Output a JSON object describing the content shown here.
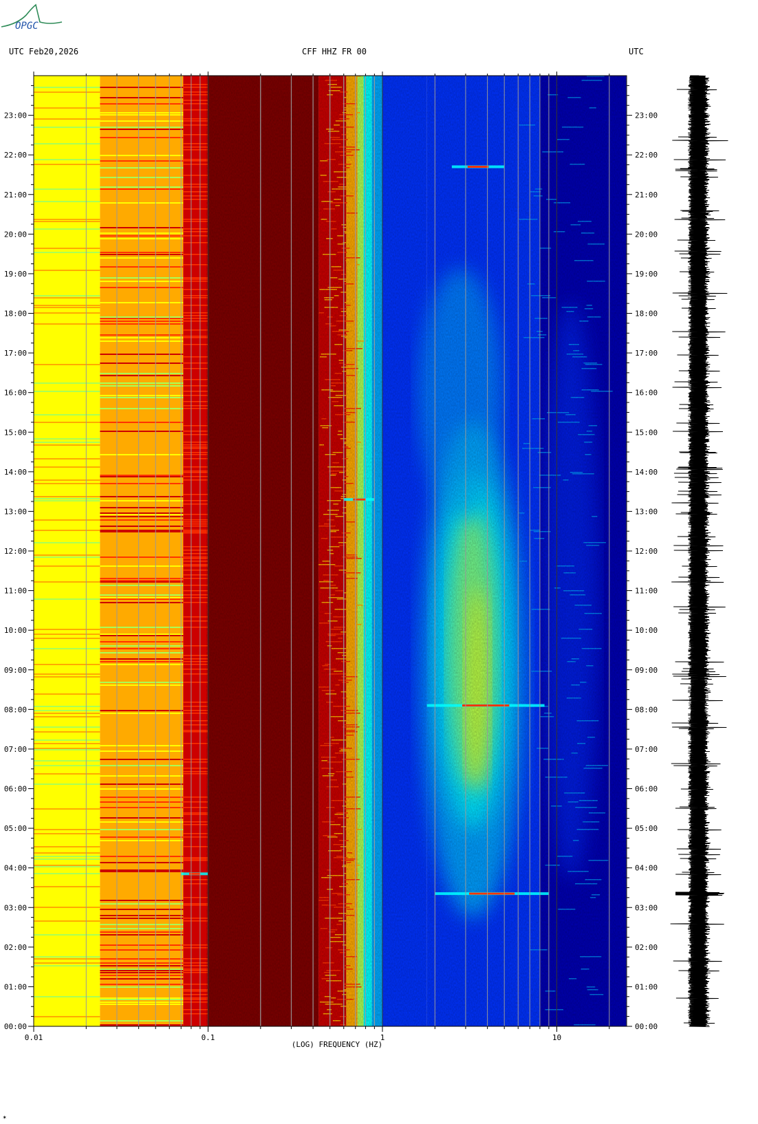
{
  "header": {
    "left_label": "UTC  Feb20,2026",
    "center_label": "CFF HHZ FR 00",
    "right_label": "UTC"
  },
  "logo": {
    "text": "OPGC",
    "color": "#2e8b57"
  },
  "chart_data": {
    "type": "heatmap",
    "title": "CFF HHZ FR 00",
    "date": "Feb20,2026",
    "xlabel": "(LOG) FREQUENCY (HZ)",
    "xscale": "log",
    "xlim": [
      0.01,
      25
    ],
    "x_tick_labels": [
      {
        "value": 0.01,
        "label": "0.01"
      },
      {
        "value": 0.1,
        "label": "0.1"
      },
      {
        "value": 1,
        "label": "1"
      },
      {
        "value": 10,
        "label": "10"
      }
    ],
    "ylabel": "UTC",
    "ylim_hours": [
      0,
      24
    ],
    "y_tick_labels": [
      "00:00",
      "01:00",
      "02:00",
      "03:00",
      "04:00",
      "05:00",
      "06:00",
      "07:00",
      "08:00",
      "09:00",
      "10:00",
      "11:00",
      "12:00",
      "13:00",
      "14:00",
      "15:00",
      "16:00",
      "17:00",
      "18:00",
      "19:00",
      "20:00",
      "21:00",
      "22:00",
      "23:00"
    ],
    "colormap": [
      "#0000b4",
      "#0033ff",
      "#00aaff",
      "#00ffff",
      "#aaff55",
      "#ffff00",
      "#ffaa00",
      "#ff3300",
      "#cc0000",
      "#800000"
    ],
    "notable_events": [
      {
        "time_hours": 3.35,
        "freq_range_hz": [
          2.0,
          9.0
        ]
      },
      {
        "time_hours": 8.1,
        "freq_range_hz": [
          1.8,
          8.5
        ]
      },
      {
        "time_hours": 21.7,
        "freq_range_hz": [
          2.5,
          5.0
        ]
      },
      {
        "time_hours": 13.3,
        "freq_range_hz": [
          0.6,
          0.9
        ]
      },
      {
        "time_hours": 3.85,
        "freq_range_hz": [
          0.07,
          0.1
        ]
      }
    ],
    "seismogram": {
      "position": "right",
      "orientation": "vertical"
    }
  },
  "footer": {
    "mark": "✶"
  }
}
